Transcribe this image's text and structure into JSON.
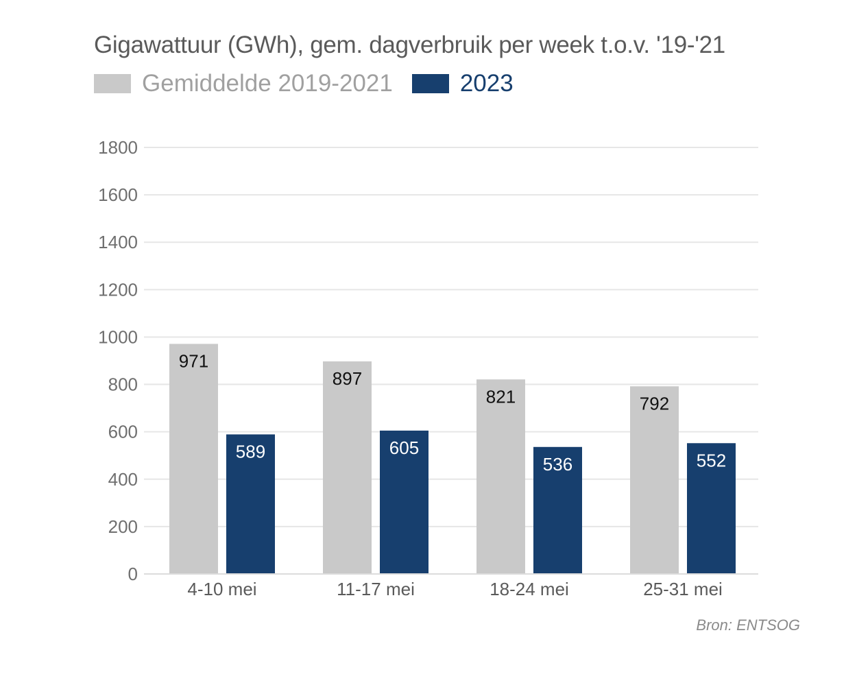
{
  "chart_data": {
    "type": "bar",
    "title": "Gigawattuur (GWh), gem. dagverbruik per week t.o.v. '19-'21",
    "categories": [
      "4-10 mei",
      "11-17 mei",
      "18-24 mei",
      "25-31 mei"
    ],
    "series": [
      {
        "name": "Gemiddelde 2019-2021",
        "values": [
          971,
          897,
          821,
          792
        ],
        "color": "#c9c9c9",
        "label_color": "#111111"
      },
      {
        "name": "2023",
        "values": [
          589,
          605,
          536,
          552
        ],
        "color": "#173f6e",
        "label_color": "#ffffff"
      }
    ],
    "ylim": [
      0,
      1800
    ],
    "yticks": [
      0,
      200,
      400,
      600,
      800,
      1000,
      1200,
      1400,
      1600,
      1800
    ],
    "grid": true,
    "legend_position": "top-left",
    "source": "Bron: ENTSOG"
  },
  "legend": {
    "label_colors": [
      "#a0a0a0",
      "#173f6e"
    ]
  }
}
